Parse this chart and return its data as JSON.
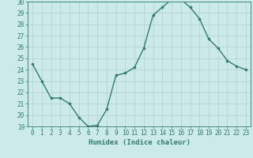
{
  "x": [
    0,
    1,
    2,
    3,
    4,
    5,
    6,
    7,
    8,
    9,
    10,
    11,
    12,
    13,
    14,
    15,
    16,
    17,
    18,
    19,
    20,
    21,
    22,
    23
  ],
  "y": [
    24.5,
    23.0,
    21.5,
    21.5,
    21.0,
    19.8,
    19.0,
    19.1,
    20.5,
    23.5,
    23.7,
    24.2,
    25.9,
    28.8,
    29.5,
    30.2,
    30.2,
    29.5,
    28.5,
    26.7,
    25.9,
    24.8,
    24.3,
    24.0
  ],
  "line_color": "#2e7d6e",
  "marker_color": "#2e7d6e",
  "bg_color": "#cceae9",
  "grid_color": "#b0d0ce",
  "xlabel": "Humidex (Indice chaleur)",
  "ylim": [
    19,
    30
  ],
  "xlim_min": -0.5,
  "xlim_max": 23.5,
  "yticks": [
    19,
    20,
    21,
    22,
    23,
    24,
    25,
    26,
    27,
    28,
    29,
    30
  ],
  "xticks": [
    0,
    1,
    2,
    3,
    4,
    5,
    6,
    7,
    8,
    9,
    10,
    11,
    12,
    13,
    14,
    15,
    16,
    17,
    18,
    19,
    20,
    21,
    22,
    23
  ],
  "tick_color": "#2e7d6e",
  "axis_color": "#2e7d6e",
  "xlabel_fontsize": 6.5,
  "tick_fontsize": 5.5,
  "marker_size": 2.2,
  "line_width": 1.0
}
